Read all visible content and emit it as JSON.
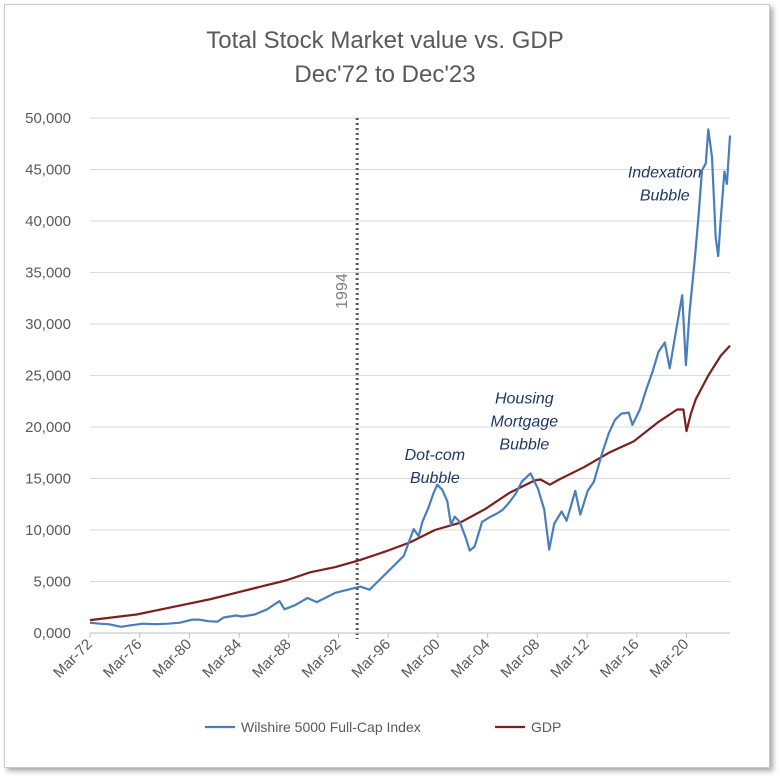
{
  "chart_data": {
    "type": "line",
    "title": [
      "Total Stock Market value vs. GDP",
      "Dec'72 to Dec'23"
    ],
    "xlabel": "",
    "ylabel": "",
    "ylim": [
      0,
      50000
    ],
    "xlim": [
      1972.25,
      2023.75
    ],
    "yticks": [
      0,
      5000,
      10000,
      15000,
      20000,
      25000,
      30000,
      35000,
      40000,
      45000,
      50000
    ],
    "ytick_labels": [
      "0,000",
      "5,000",
      "10,000",
      "15,000",
      "20,000",
      "25,000",
      "30,000",
      "35,000",
      "40,000",
      "45,000",
      "50,000"
    ],
    "xticks": [
      1972.25,
      1976.25,
      1980.25,
      1984.25,
      1988.25,
      1992.25,
      1996.25,
      2000.25,
      2004.25,
      2008.25,
      2012.25,
      2016.25,
      2020.25
    ],
    "xtick_labels": [
      "Mar-72",
      "Mar-76",
      "Mar-80",
      "Mar-84",
      "Mar-88",
      "Mar-92",
      "Mar-96",
      "Mar-00",
      "Mar-04",
      "Mar-08",
      "Mar-12",
      "Mar-16",
      "Mar-20"
    ],
    "grid": "horizontal",
    "legend": "bottom",
    "marker": {
      "x": 1993.75,
      "label": "1994"
    },
    "annotations": [
      {
        "lines": [
          "Dot-com",
          "Bubble"
        ],
        "x": 2000.0,
        "y": 16800
      },
      {
        "lines": [
          "Housing",
          "Mortgage",
          "Bubble"
        ],
        "x": 2007.2,
        "y": 22300
      },
      {
        "lines": [
          "Indexation",
          "Bubble"
        ],
        "x": 2018.5,
        "y": 44200
      }
    ],
    "series": [
      {
        "name": "Wilshire 5000 Full-Cap Index",
        "color": "#4a7ebb",
        "points": [
          [
            1972.25,
            1000
          ],
          [
            1973.0,
            900
          ],
          [
            1973.75,
            850
          ],
          [
            1974.75,
            600
          ],
          [
            1975.5,
            750
          ],
          [
            1976.5,
            900
          ],
          [
            1977.5,
            850
          ],
          [
            1978.5,
            900
          ],
          [
            1979.5,
            1000
          ],
          [
            1980.5,
            1300
          ],
          [
            1981.0,
            1300
          ],
          [
            1981.75,
            1150
          ],
          [
            1982.5,
            1100
          ],
          [
            1983.0,
            1500
          ],
          [
            1984.0,
            1700
          ],
          [
            1984.5,
            1600
          ],
          [
            1985.5,
            1800
          ],
          [
            1986.5,
            2300
          ],
          [
            1987.5,
            3100
          ],
          [
            1987.9,
            2300
          ],
          [
            1988.75,
            2700
          ],
          [
            1989.75,
            3400
          ],
          [
            1990.5,
            3000
          ],
          [
            1991.0,
            3300
          ],
          [
            1992.0,
            3900
          ],
          [
            1993.0,
            4200
          ],
          [
            1994.0,
            4500
          ],
          [
            1994.75,
            4200
          ],
          [
            1995.5,
            5100
          ],
          [
            1996.5,
            6300
          ],
          [
            1997.5,
            7500
          ],
          [
            1998.3,
            10100
          ],
          [
            1998.7,
            9400
          ],
          [
            1999.0,
            10800
          ],
          [
            1999.5,
            12200
          ],
          [
            1999.9,
            13600
          ],
          [
            2000.2,
            14400
          ],
          [
            2000.6,
            13900
          ],
          [
            2001.0,
            12800
          ],
          [
            2001.3,
            10500
          ],
          [
            2001.6,
            11300
          ],
          [
            2002.0,
            10800
          ],
          [
            2002.5,
            9200
          ],
          [
            2002.8,
            8000
          ],
          [
            2003.2,
            8400
          ],
          [
            2003.8,
            10800
          ],
          [
            2004.5,
            11300
          ],
          [
            2005.0,
            11600
          ],
          [
            2005.5,
            12000
          ],
          [
            2006.0,
            12700
          ],
          [
            2006.5,
            13500
          ],
          [
            2007.0,
            14700
          ],
          [
            2007.7,
            15500
          ],
          [
            2008.3,
            14000
          ],
          [
            2008.8,
            12000
          ],
          [
            2009.2,
            8100
          ],
          [
            2009.6,
            10600
          ],
          [
            2010.2,
            11800
          ],
          [
            2010.6,
            10900
          ],
          [
            2011.3,
            13800
          ],
          [
            2011.7,
            11500
          ],
          [
            2012.3,
            13800
          ],
          [
            2012.8,
            14700
          ],
          [
            2013.5,
            17600
          ],
          [
            2014.0,
            19400
          ],
          [
            2014.5,
            20700
          ],
          [
            2015.0,
            21300
          ],
          [
            2015.6,
            21400
          ],
          [
            2015.9,
            20200
          ],
          [
            2016.5,
            21700
          ],
          [
            2017.0,
            23600
          ],
          [
            2017.5,
            25300
          ],
          [
            2018.0,
            27300
          ],
          [
            2018.5,
            28200
          ],
          [
            2018.9,
            25700
          ],
          [
            2019.5,
            30000
          ],
          [
            2019.9,
            32800
          ],
          [
            2020.2,
            26000
          ],
          [
            2020.5,
            31200
          ],
          [
            2020.9,
            36100
          ],
          [
            2021.2,
            40200
          ],
          [
            2021.5,
            44900
          ],
          [
            2021.8,
            45600
          ],
          [
            2022.0,
            48900
          ],
          [
            2022.3,
            46200
          ],
          [
            2022.6,
            38400
          ],
          [
            2022.8,
            36600
          ],
          [
            2023.0,
            40100
          ],
          [
            2023.3,
            44800
          ],
          [
            2023.5,
            43600
          ],
          [
            2023.75,
            48300
          ]
        ]
      },
      {
        "name": "GDP",
        "color": "#7b1f1f",
        "points": [
          [
            1972.25,
            1250
          ],
          [
            1974.0,
            1500
          ],
          [
            1976.0,
            1800
          ],
          [
            1978.0,
            2300
          ],
          [
            1980.0,
            2800
          ],
          [
            1982.0,
            3300
          ],
          [
            1984.0,
            3900
          ],
          [
            1986.0,
            4500
          ],
          [
            1988.0,
            5100
          ],
          [
            1990.0,
            5900
          ],
          [
            1992.0,
            6400
          ],
          [
            1994.0,
            7100
          ],
          [
            1996.0,
            7900
          ],
          [
            1998.0,
            8800
          ],
          [
            2000.0,
            10000
          ],
          [
            2002.0,
            10700
          ],
          [
            2004.0,
            12000
          ],
          [
            2006.0,
            13600
          ],
          [
            2008.0,
            14800
          ],
          [
            2008.5,
            14900
          ],
          [
            2009.25,
            14400
          ],
          [
            2010.0,
            14900
          ],
          [
            2012.0,
            16100
          ],
          [
            2014.0,
            17500
          ],
          [
            2016.0,
            18600
          ],
          [
            2018.0,
            20500
          ],
          [
            2019.5,
            21700
          ],
          [
            2020.0,
            21700
          ],
          [
            2020.25,
            19600
          ],
          [
            2020.6,
            21300
          ],
          [
            2021.0,
            22700
          ],
          [
            2022.0,
            25000
          ],
          [
            2023.0,
            26900
          ],
          [
            2023.75,
            27900
          ]
        ]
      }
    ]
  }
}
